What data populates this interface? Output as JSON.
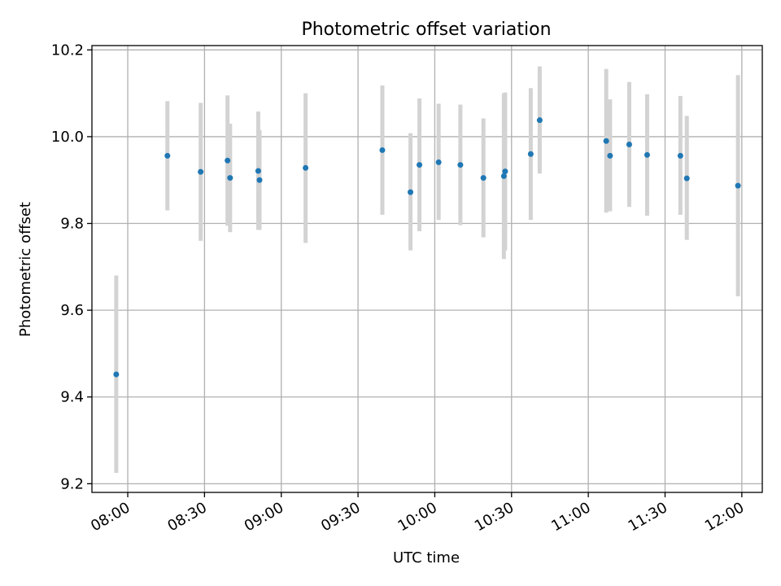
{
  "chart_data": {
    "type": "scatter",
    "title": "Photometric offset variation",
    "xlabel": "UTC time",
    "ylabel": "Photometric offset",
    "x_unit": "UTC hh:mm",
    "xlim": [
      "07:46",
      "12:08"
    ],
    "ylim": [
      9.18,
      10.21
    ],
    "x_ticks": [
      "08:00",
      "08:30",
      "09:00",
      "09:30",
      "10:00",
      "10:30",
      "11:00",
      "11:30",
      "12:00"
    ],
    "y_ticks": [
      9.2,
      9.4,
      9.6,
      9.8,
      10.0,
      10.2
    ],
    "y_tick_labels": [
      "9.2",
      "9.4",
      "9.6",
      "9.8",
      "10.0",
      "10.2"
    ],
    "grid": true,
    "colors": {
      "marker": "#1f77b4",
      "error_bar": "#d3d3d3",
      "grid": "#b0b0b0",
      "axes": "#000000"
    },
    "series": [
      {
        "points": [
          {
            "t": "07:55:30",
            "y": 9.452,
            "lo": 9.225,
            "hi": 9.68
          },
          {
            "t": "08:15:30",
            "y": 9.956,
            "lo": 9.83,
            "hi": 10.082
          },
          {
            "t": "08:28:30",
            "y": 9.919,
            "lo": 9.76,
            "hi": 10.078
          },
          {
            "t": "08:39:00",
            "y": 9.945,
            "lo": 9.795,
            "hi": 10.095
          },
          {
            "t": "08:40:00",
            "y": 9.905,
            "lo": 9.78,
            "hi": 10.03
          },
          {
            "t": "08:51:00",
            "y": 9.921,
            "lo": 9.785,
            "hi": 10.058
          },
          {
            "t": "08:51:30",
            "y": 9.9,
            "lo": 9.785,
            "hi": 10.015
          },
          {
            "t": "09:09:30",
            "y": 9.928,
            "lo": 9.755,
            "hi": 10.1
          },
          {
            "t": "09:39:30",
            "y": 9.969,
            "lo": 9.82,
            "hi": 10.118
          },
          {
            "t": "09:50:30",
            "y": 9.872,
            "lo": 9.738,
            "hi": 10.008
          },
          {
            "t": "09:54:00",
            "y": 9.935,
            "lo": 9.782,
            "hi": 10.088
          },
          {
            "t": "10:01:30",
            "y": 9.941,
            "lo": 9.808,
            "hi": 10.076
          },
          {
            "t": "10:10:00",
            "y": 9.935,
            "lo": 9.796,
            "hi": 10.074
          },
          {
            "t": "10:19:00",
            "y": 9.905,
            "lo": 9.768,
            "hi": 10.042
          },
          {
            "t": "10:27:00",
            "y": 9.909,
            "lo": 9.718,
            "hi": 10.1
          },
          {
            "t": "10:27:30",
            "y": 9.92,
            "lo": 9.738,
            "hi": 10.102
          },
          {
            "t": "10:37:30",
            "y": 9.96,
            "lo": 9.808,
            "hi": 10.112
          },
          {
            "t": "10:41:00",
            "y": 10.038,
            "lo": 9.915,
            "hi": 10.162
          },
          {
            "t": "11:07:00",
            "y": 9.99,
            "lo": 9.825,
            "hi": 10.156
          },
          {
            "t": "11:08:30",
            "y": 9.956,
            "lo": 9.828,
            "hi": 10.086
          },
          {
            "t": "11:16:00",
            "y": 9.982,
            "lo": 9.838,
            "hi": 10.126
          },
          {
            "t": "11:23:00",
            "y": 9.958,
            "lo": 9.818,
            "hi": 10.098
          },
          {
            "t": "11:36:00",
            "y": 9.956,
            "lo": 9.82,
            "hi": 10.094
          },
          {
            "t": "11:38:30",
            "y": 9.904,
            "lo": 9.762,
            "hi": 10.048
          },
          {
            "t": "11:58:30",
            "y": 9.887,
            "lo": 9.632,
            "hi": 10.142
          }
        ]
      }
    ]
  }
}
